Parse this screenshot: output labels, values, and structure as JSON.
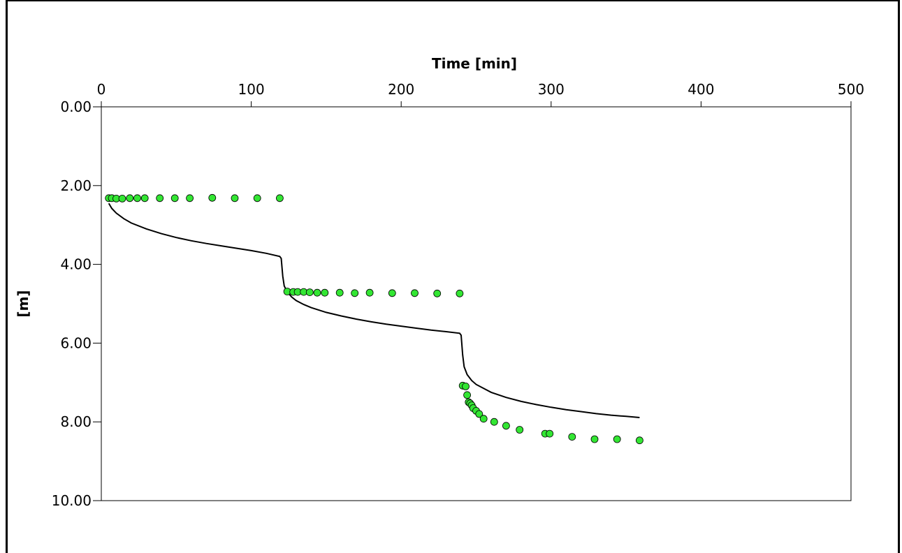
{
  "chart_data": {
    "type": "scatter",
    "title": "",
    "xlabel": "Time [min]",
    "ylabel": "[m]",
    "xlim": [
      0,
      500
    ],
    "ylim": [
      0,
      10
    ],
    "y_inverted": true,
    "x_axis_position": "top",
    "grid": false,
    "x_ticks": [
      0,
      100,
      200,
      300,
      400,
      500
    ],
    "x_tick_labels": [
      "0",
      "100",
      "200",
      "300",
      "400",
      "500"
    ],
    "y_ticks": [
      0,
      2,
      4,
      6,
      8,
      10
    ],
    "y_tick_labels": [
      "0.00",
      "2.00",
      "4.00",
      "6.00",
      "8.00",
      "10.00"
    ],
    "colors": {
      "observed": "#33e633",
      "simulated": "#000000"
    },
    "series": [
      {
        "kind": "points",
        "points": [
          [
            5,
            2.32
          ],
          [
            7,
            2.32
          ],
          [
            10,
            2.33
          ],
          [
            14,
            2.33
          ],
          [
            19,
            2.32
          ],
          [
            24,
            2.32
          ],
          [
            29,
            2.32
          ],
          [
            39,
            2.32
          ],
          [
            49,
            2.32
          ],
          [
            59,
            2.32
          ],
          [
            74,
            2.31
          ],
          [
            89,
            2.32
          ],
          [
            104,
            2.32
          ],
          [
            119,
            2.32
          ],
          [
            124,
            4.69
          ],
          [
            128,
            4.7
          ],
          [
            131,
            4.7
          ],
          [
            135,
            4.7
          ],
          [
            139,
            4.71
          ],
          [
            144,
            4.72
          ],
          [
            149,
            4.72
          ],
          [
            159,
            4.72
          ],
          [
            169,
            4.73
          ],
          [
            179,
            4.72
          ],
          [
            194,
            4.73
          ],
          [
            209,
            4.73
          ],
          [
            224,
            4.74
          ],
          [
            239,
            4.74
          ],
          [
            241,
            7.08
          ],
          [
            243,
            7.1
          ],
          [
            244,
            7.32
          ],
          [
            245,
            7.5
          ],
          [
            246,
            7.53
          ],
          [
            247,
            7.58
          ],
          [
            248,
            7.65
          ],
          [
            250,
            7.72
          ],
          [
            252,
            7.8
          ],
          [
            255,
            7.92
          ],
          [
            262,
            8.0
          ],
          [
            270,
            8.1
          ],
          [
            279,
            8.2
          ],
          [
            296,
            8.3
          ],
          [
            299,
            8.3
          ],
          [
            314,
            8.38
          ],
          [
            329,
            8.44
          ],
          [
            344,
            8.44
          ],
          [
            359,
            8.47
          ]
        ]
      },
      {
        "kind": "line",
        "points": [
          [
            5,
            2.45
          ],
          [
            7,
            2.58
          ],
          [
            10,
            2.7
          ],
          [
            15,
            2.84
          ],
          [
            20,
            2.95
          ],
          [
            30,
            3.1
          ],
          [
            40,
            3.22
          ],
          [
            50,
            3.32
          ],
          [
            60,
            3.4
          ],
          [
            70,
            3.47
          ],
          [
            80,
            3.53
          ],
          [
            90,
            3.59
          ],
          [
            100,
            3.65
          ],
          [
            110,
            3.72
          ],
          [
            119,
            3.8
          ],
          [
            120,
            3.85
          ],
          [
            121,
            4.3
          ],
          [
            122,
            4.55
          ],
          [
            124,
            4.7
          ],
          [
            127,
            4.83
          ],
          [
            130,
            4.92
          ],
          [
            135,
            5.02
          ],
          [
            140,
            5.1
          ],
          [
            150,
            5.22
          ],
          [
            160,
            5.31
          ],
          [
            170,
            5.39
          ],
          [
            180,
            5.46
          ],
          [
            190,
            5.52
          ],
          [
            200,
            5.57
          ],
          [
            210,
            5.62
          ],
          [
            220,
            5.67
          ],
          [
            230,
            5.71
          ],
          [
            239,
            5.75
          ],
          [
            240,
            5.8
          ],
          [
            241,
            6.3
          ],
          [
            242,
            6.6
          ],
          [
            244,
            6.8
          ],
          [
            247,
            6.95
          ],
          [
            250,
            7.05
          ],
          [
            260,
            7.25
          ],
          [
            270,
            7.38
          ],
          [
            280,
            7.48
          ],
          [
            290,
            7.56
          ],
          [
            300,
            7.63
          ],
          [
            310,
            7.69
          ],
          [
            320,
            7.74
          ],
          [
            330,
            7.79
          ],
          [
            340,
            7.83
          ],
          [
            350,
            7.86
          ],
          [
            359,
            7.89
          ]
        ]
      }
    ]
  }
}
